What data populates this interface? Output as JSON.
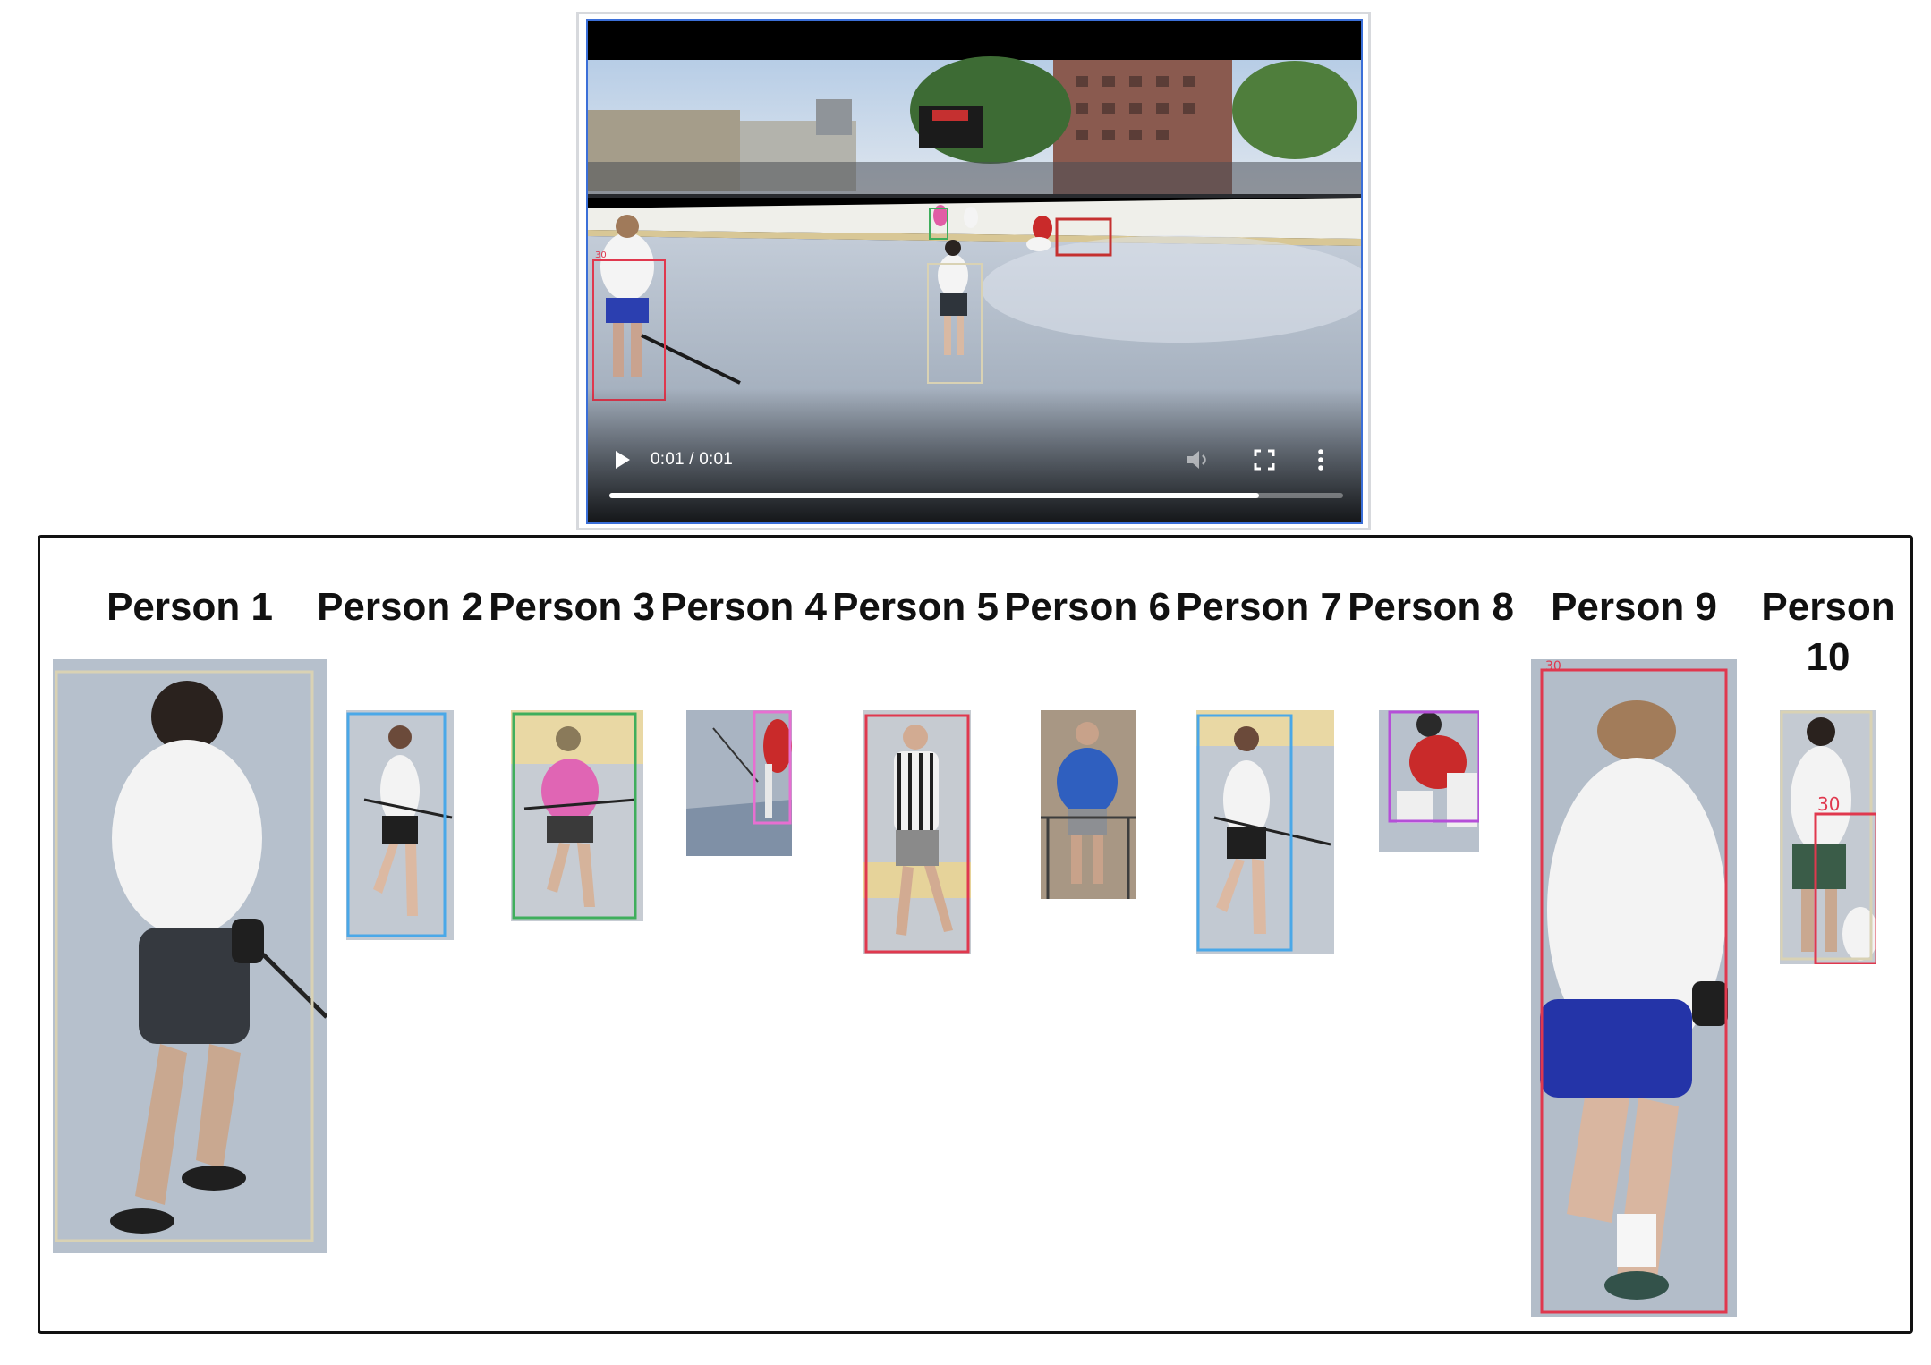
{
  "video": {
    "time_display": "0:01 / 0:01",
    "progress_fraction": 0.885,
    "icons": [
      "play-icon",
      "volume-icon",
      "fullscreen-icon",
      "more-vert-icon"
    ],
    "box_label": "30"
  },
  "gallery": {
    "persons": [
      {
        "label": "Person 1",
        "box_color": "#d9d2b4"
      },
      {
        "label": "Person 2",
        "box_color": "#4aa8e8"
      },
      {
        "label": "Person 3",
        "box_color": "#3fae5c"
      },
      {
        "label": "Person 4",
        "box_color": "#e76fd1"
      },
      {
        "label": "Person 5",
        "box_color": "#e0384e"
      },
      {
        "label": "Person 6",
        "box_color": ""
      },
      {
        "label": "Person 7",
        "box_color": "#4aa8e8"
      },
      {
        "label": "Person 8",
        "box_color": "#b54fd8"
      },
      {
        "label": "Person 9",
        "box_color": "#e0384e"
      },
      {
        "label": "Person 10",
        "box_color": "#d9d2b4"
      }
    ]
  }
}
